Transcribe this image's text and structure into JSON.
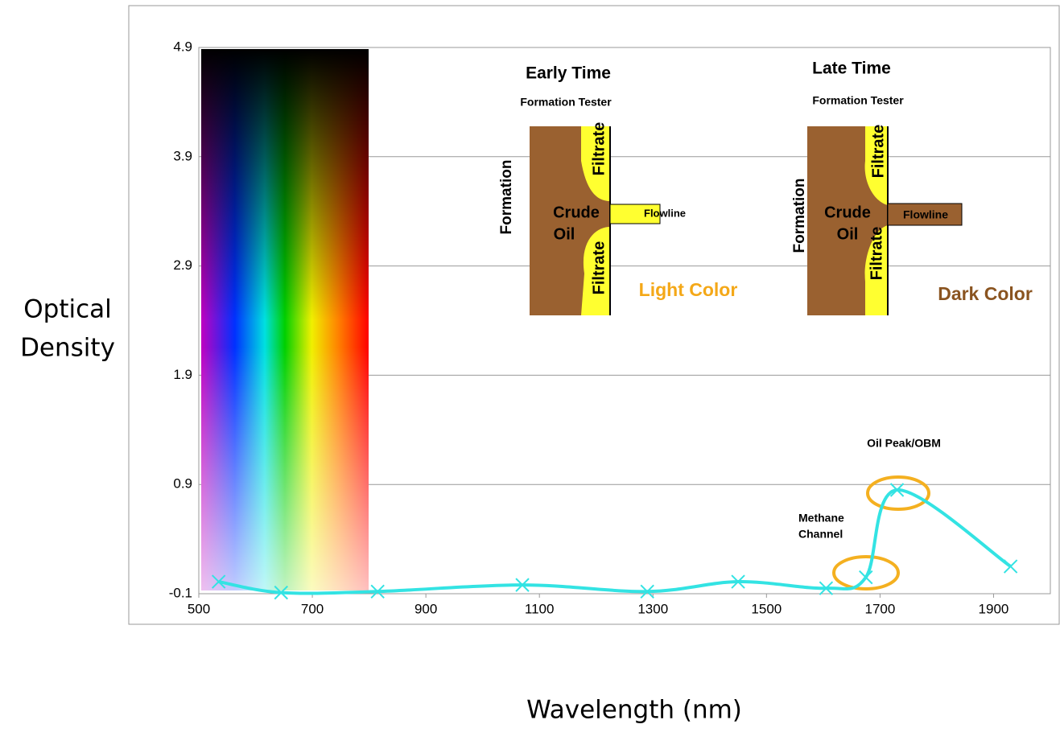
{
  "chart_data": {
    "type": "line",
    "x": [
      535,
      645,
      815,
      1070,
      1290,
      1450,
      1605,
      1675,
      1730,
      1930
    ],
    "values": [
      0.01,
      -0.09,
      -0.08,
      -0.02,
      -0.08,
      0.01,
      -0.05,
      0.05,
      0.85,
      0.15
    ],
    "color": "#33e3e3",
    "xlim": [
      500,
      2000
    ],
    "xticks": [
      500,
      700,
      900,
      1100,
      1300,
      1500,
      1700,
      1900
    ],
    "ylim": [
      -0.1,
      4.9
    ],
    "yticks": [
      -0.1,
      0.9,
      1.9,
      2.9,
      3.9,
      4.9
    ],
    "grid": true,
    "ylabel": [
      "Optical",
      "Density"
    ],
    "xlabel": "Wavelength (nm)",
    "annotations": {
      "early_time": {
        "title": "Early Time",
        "tool": "Formation Tester",
        "formation": "Formation",
        "crude": "Crude",
        "oil": "Oil",
        "filtrate": "Filtrate",
        "flowline": "Flowline",
        "color_note": "Light Color"
      },
      "late_time": {
        "title": "Late Time",
        "tool": "Formation Tester",
        "formation": "Formation",
        "crude": "Crude",
        "oil": "Oil",
        "filtrate": "Filtrate",
        "flowline": "Flowline",
        "color_note": "Dark Color"
      },
      "oil_peak": "Oil Peak/OBM",
      "methane": [
        "Methane",
        "Channel"
      ]
    }
  }
}
